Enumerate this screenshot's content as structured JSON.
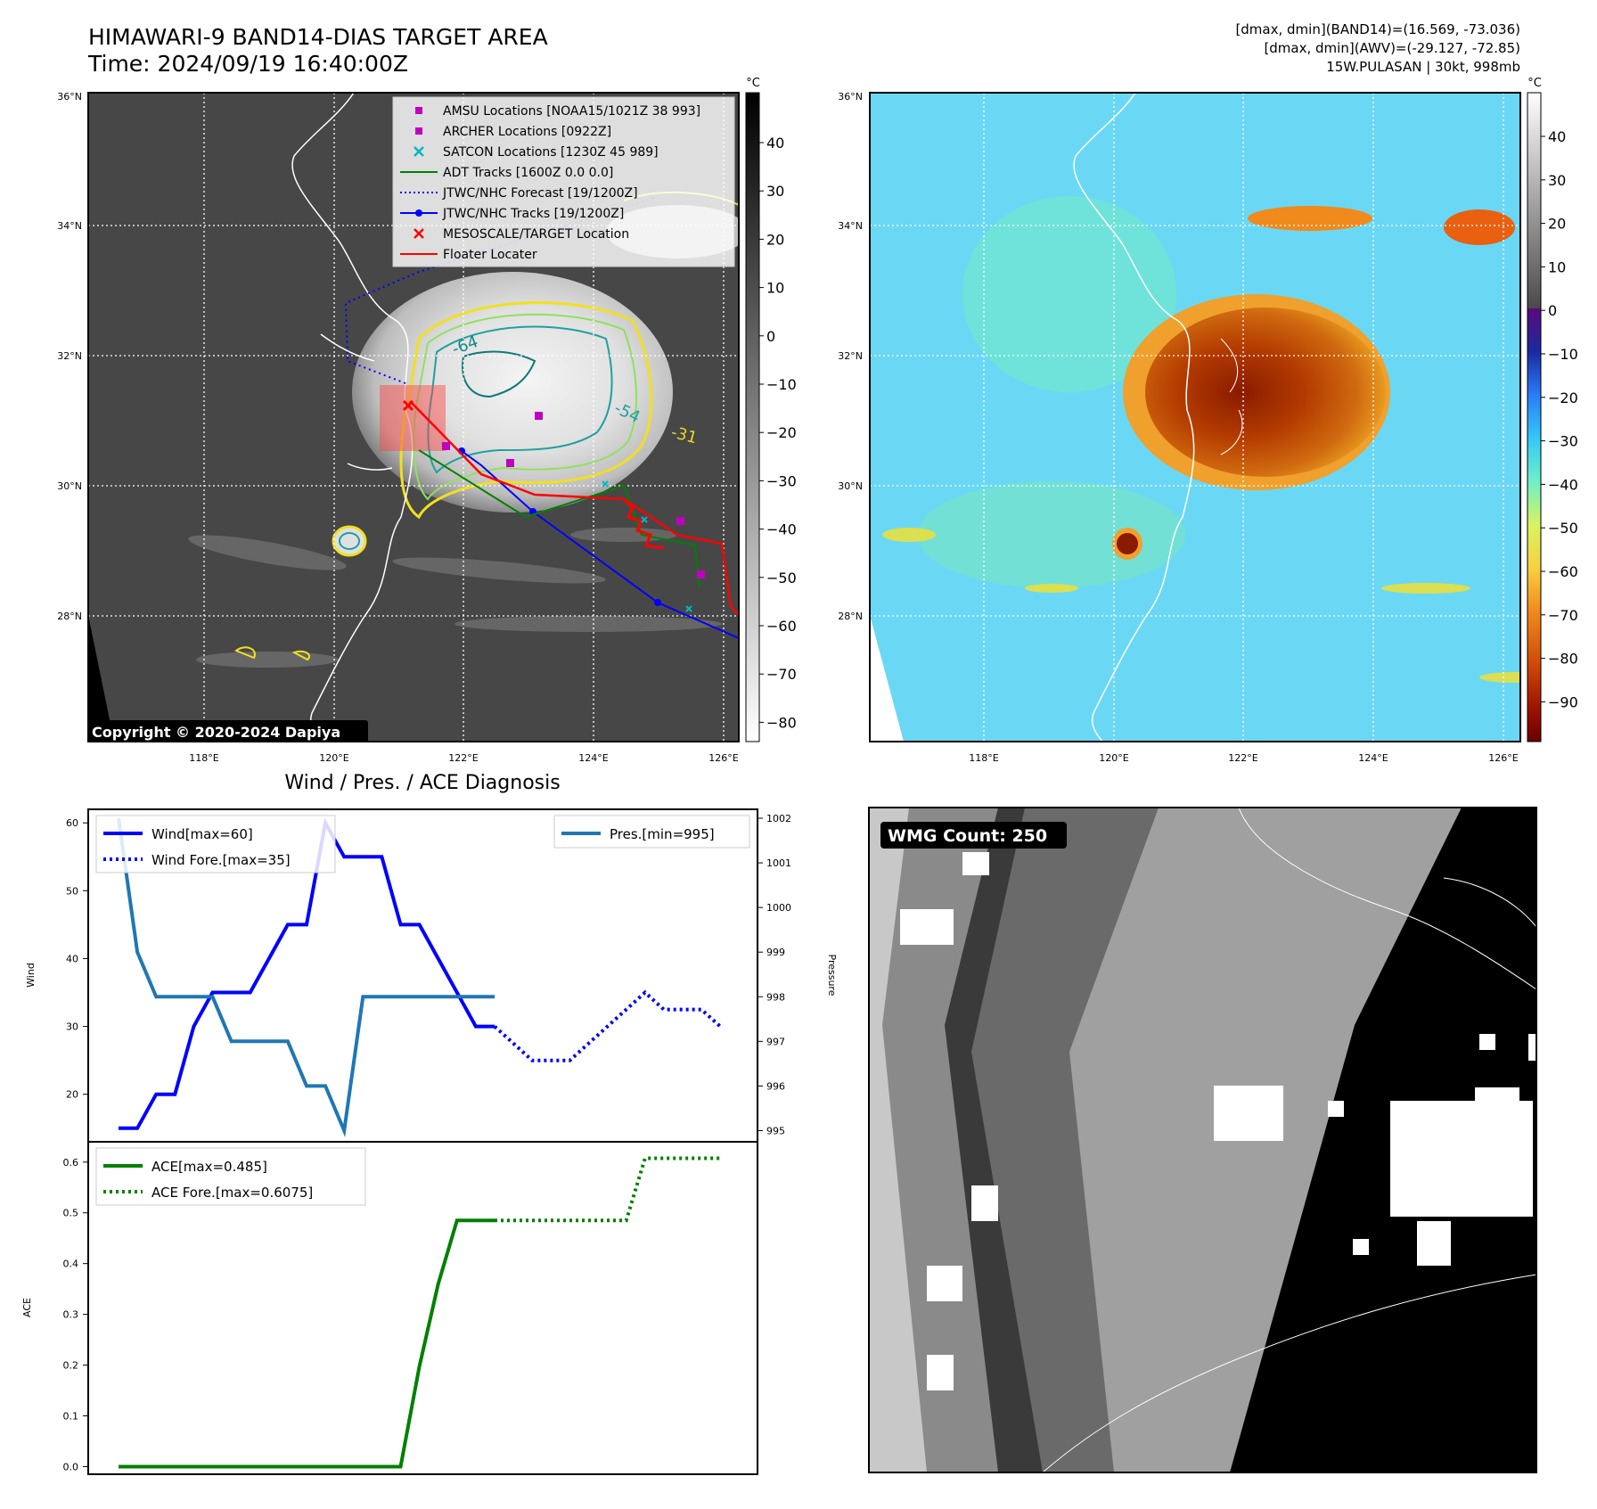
{
  "header": {
    "title_line1": "HIMAWARI-9 BAND14-DIAS TARGET AREA",
    "title_line2": "Time: 2024/09/19 16:40:00Z",
    "info_line1": "[dmax, dmin](BAND14)=(16.569, -73.036)",
    "info_line2": "[dmax, dmin](AWV)=(-29.127, -72.85)",
    "info_line3": "15W.PULASAN | 30kt, 998mb"
  },
  "map": {
    "lat_labels": [
      "36°N",
      "34°N",
      "32°N",
      "30°N",
      "28°N"
    ],
    "lon_labels": [
      "118°E",
      "120°E",
      "122°E",
      "124°E",
      "126°E"
    ],
    "copyright": "Copyright © 2020-2024 Dapiya",
    "contour_labels": [
      "-64",
      "-54",
      "-31"
    ],
    "legend": [
      {
        "label": "AMSU Locations [NOAA15/1021Z 38 993]",
        "color": "#c000c0",
        "marker": "square"
      },
      {
        "label": "ARCHER Locations [0922Z]",
        "color": "#c000c0",
        "marker": "square"
      },
      {
        "label": "SATCON Locations [1230Z 45 989]",
        "color": "#00b8c0",
        "marker": "x"
      },
      {
        "label": "ADT Tracks [1600Z 0.0 0.0]",
        "color": "#008000",
        "marker": "line"
      },
      {
        "label": "JTWC/NHC Forecast [19/1200Z]",
        "color": "#0000ff",
        "marker": "dotted"
      },
      {
        "label": "JTWC/NHC Tracks [19/1200Z]",
        "color": "#0000ff",
        "marker": "line-dot"
      },
      {
        "label": "MESOSCALE/TARGET Location",
        "color": "#ff0000",
        "marker": "x"
      },
      {
        "label": "Floater Locater",
        "color": "#ff0000",
        "marker": "line"
      }
    ],
    "gray_colorbar": {
      "unit": "°C",
      "ticks": [
        "40",
        "30",
        "20",
        "10",
        "0",
        "−10",
        "−20",
        "−30",
        "−40",
        "−50",
        "−60",
        "−70",
        "−80"
      ]
    },
    "color_colorbar": {
      "unit": "°C",
      "ticks": [
        "40",
        "30",
        "20",
        "10",
        "0",
        "−10",
        "−20",
        "−30",
        "−40",
        "−50",
        "−60",
        "−70",
        "−80",
        "−90"
      ]
    }
  },
  "chart_data": [
    {
      "type": "line",
      "title": "Wind / Pres. / ACE Diagnosis",
      "ylabel": "Wind",
      "y2label": "Pressure",
      "ylim": [
        13,
        62
      ],
      "y2lim": [
        994.75,
        1002.2
      ],
      "yticks": [
        20,
        30,
        40,
        50,
        60
      ],
      "y2ticks": [
        995,
        996,
        997,
        998,
        999,
        1000,
        1001,
        1002
      ],
      "x": [
        0,
        1,
        2,
        3,
        4,
        5,
        6,
        7,
        8,
        9,
        10,
        11,
        12,
        13,
        14,
        15,
        16,
        17,
        18,
        19,
        20,
        21,
        22,
        23,
        24,
        25,
        26,
        27,
        28,
        29,
        30,
        31,
        32
      ],
      "series": [
        {
          "name": "Wind[max=60]",
          "style": "solid",
          "color": "#0000ff",
          "x": [
            0,
            1,
            2,
            3,
            4,
            5,
            6,
            7,
            8,
            9,
            10,
            11,
            12,
            13,
            14,
            15,
            16,
            17,
            18,
            19,
            20
          ],
          "values": [
            15,
            15,
            20,
            20,
            30,
            35,
            35,
            35,
            40,
            45,
            45,
            60,
            55,
            55,
            55,
            45,
            45,
            40,
            35,
            30,
            30
          ]
        },
        {
          "name": "Wind Fore.[max=35]",
          "style": "dotted",
          "color": "#0000ff",
          "x": [
            20,
            21,
            22,
            23,
            24,
            25,
            26,
            27,
            28,
            29,
            30,
            31,
            32
          ],
          "values": [
            30,
            27.5,
            25,
            25,
            25,
            27.5,
            30,
            32.5,
            35,
            32.5,
            32.5,
            32.5,
            30
          ]
        },
        {
          "name": "Pres.[min=995]",
          "style": "solid",
          "color": "#1f77b4",
          "axis": "right",
          "x": [
            0,
            1,
            2,
            3,
            4,
            5,
            6,
            7,
            8,
            9,
            10,
            11,
            12,
            13,
            14,
            15,
            16,
            17,
            18,
            19,
            20
          ],
          "values": [
            1002,
            999,
            998,
            998,
            998,
            998,
            997,
            997,
            997,
            997,
            996,
            996,
            995,
            998,
            998,
            998,
            998,
            998,
            998,
            998,
            998
          ]
        }
      ]
    },
    {
      "type": "line",
      "ylabel": "ACE",
      "ylim": [
        -0.015,
        0.64
      ],
      "yticks": [
        "0.0",
        "0.1",
        "0.2",
        "0.3",
        "0.4",
        "0.5",
        "0.6"
      ],
      "series": [
        {
          "name": "ACE[max=0.485]",
          "style": "solid",
          "color": "#008000",
          "x": [
            0,
            1,
            2,
            3,
            4,
            5,
            6,
            7,
            8,
            9,
            10,
            11,
            12,
            13,
            14,
            15,
            16,
            17,
            18,
            19,
            20
          ],
          "values": [
            0,
            0,
            0,
            0,
            0,
            0,
            0,
            0,
            0,
            0,
            0,
            0,
            0,
            0,
            0,
            0,
            0.1975,
            0.36,
            0.485,
            0.485,
            0.485
          ]
        },
        {
          "name": "ACE Fore.[max=0.6075]",
          "style": "dotted",
          "color": "#008000",
          "x": [
            20,
            21,
            22,
            23,
            24,
            25,
            26,
            27,
            28,
            29,
            30,
            31,
            32
          ],
          "values": [
            0.485,
            0.485,
            0.485,
            0.485,
            0.485,
            0.485,
            0.485,
            0.485,
            0.6075,
            0.6075,
            0.6075,
            0.6075,
            0.6075
          ]
        }
      ]
    }
  ],
  "wmg": {
    "label": "WMG Count: 250"
  }
}
